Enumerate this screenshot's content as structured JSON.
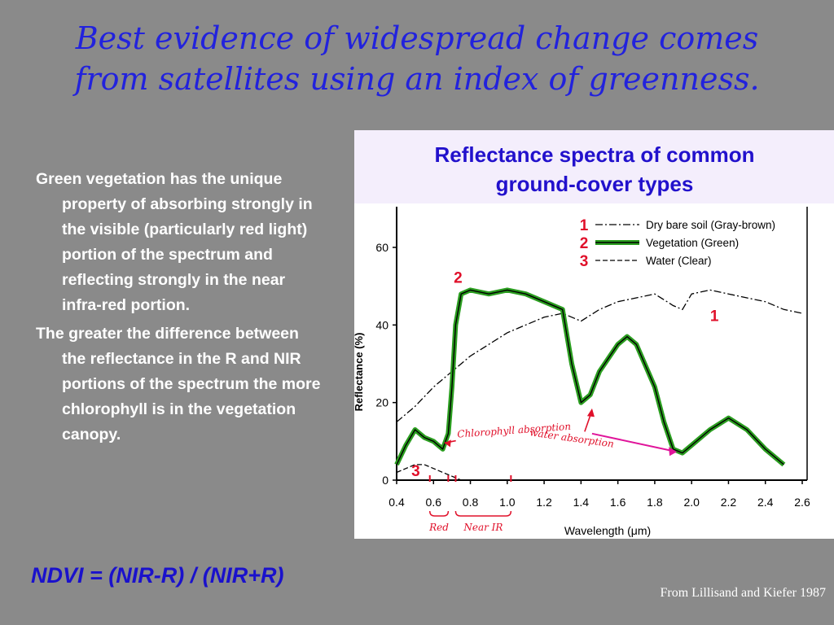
{
  "slide": {
    "title_line1": "Best evidence of widespread change comes",
    "title_line2": "from satellites using an index of greenness.",
    "bullet1": "Green vegetation has the unique property of absorbing strongly in the visible (particularly red light) portion of the spectrum and reflecting strongly in the near infra-red portion.",
    "bullet2": "The greater the difference between the reflectance in the R and NIR portions of the spectrum the more chlorophyll is in the vegetation canopy.",
    "formula": "NDVI = (NIR-R) / (NIR+R)",
    "credit": "From Lillisand and Kiefer 1987",
    "figure_title_line1": "Reflectance spectra of common",
    "figure_title_line2": "ground-cover types"
  },
  "chart_data": {
    "type": "line",
    "xlabel": "Wavelength (μm)",
    "ylabel": "Reflectance (%)",
    "xlim": [
      0.4,
      2.6
    ],
    "ylim": [
      0,
      60
    ],
    "x_ticks": [
      "0.4",
      "0.6",
      "0.8",
      "1.0",
      "1.2",
      "1.4",
      "1.6",
      "1.8",
      "2.0",
      "2.2",
      "2.4",
      "2.6"
    ],
    "y_ticks": [
      "0",
      "20",
      "40",
      "60"
    ],
    "series": [
      {
        "name": "Dry bare soil (Gray-brown)",
        "number": "1",
        "color": "#000000",
        "dash": "dashdot",
        "x": [
          0.4,
          0.5,
          0.6,
          0.7,
          0.8,
          0.9,
          1.0,
          1.1,
          1.2,
          1.3,
          1.4,
          1.5,
          1.6,
          1.7,
          1.8,
          1.9,
          1.95,
          2.0,
          2.1,
          2.2,
          2.3,
          2.4,
          2.5,
          2.6
        ],
        "y": [
          15,
          19,
          24,
          28,
          32,
          35,
          38,
          40,
          42,
          43,
          41,
          44,
          46,
          47,
          48,
          45,
          44,
          48,
          49,
          48,
          47,
          46,
          44,
          43
        ]
      },
      {
        "name": "Vegetation (Green)",
        "number": "2",
        "color": "#2a9d1f",
        "dash": "solid",
        "x": [
          0.4,
          0.45,
          0.5,
          0.55,
          0.6,
          0.65,
          0.68,
          0.7,
          0.72,
          0.75,
          0.8,
          0.9,
          1.0,
          1.1,
          1.2,
          1.3,
          1.35,
          1.4,
          1.45,
          1.5,
          1.6,
          1.65,
          1.7,
          1.8,
          1.85,
          1.9,
          1.95,
          2.0,
          2.1,
          2.2,
          2.3,
          2.4,
          2.5
        ],
        "y": [
          4,
          9,
          13,
          11,
          10,
          8,
          12,
          24,
          40,
          48,
          49,
          48,
          49,
          48,
          46,
          44,
          30,
          20,
          22,
          28,
          35,
          37,
          35,
          24,
          15,
          8,
          7,
          9,
          13,
          16,
          13,
          8,
          4
        ]
      },
      {
        "name": "Water (Clear)",
        "number": "3",
        "color": "#000000",
        "dash": "dashed",
        "x": [
          0.4,
          0.45,
          0.5,
          0.55,
          0.6,
          0.65,
          0.7,
          0.75
        ],
        "y": [
          2,
          3,
          4,
          4,
          3,
          2,
          1,
          0
        ]
      }
    ],
    "annotations": [
      "Chlorophyll absorption",
      "water absorption",
      "Red",
      "Near IR",
      "1",
      "2",
      "3"
    ],
    "curve_labels": {
      "soil": "1",
      "vegetation": "2",
      "water": "3"
    }
  }
}
